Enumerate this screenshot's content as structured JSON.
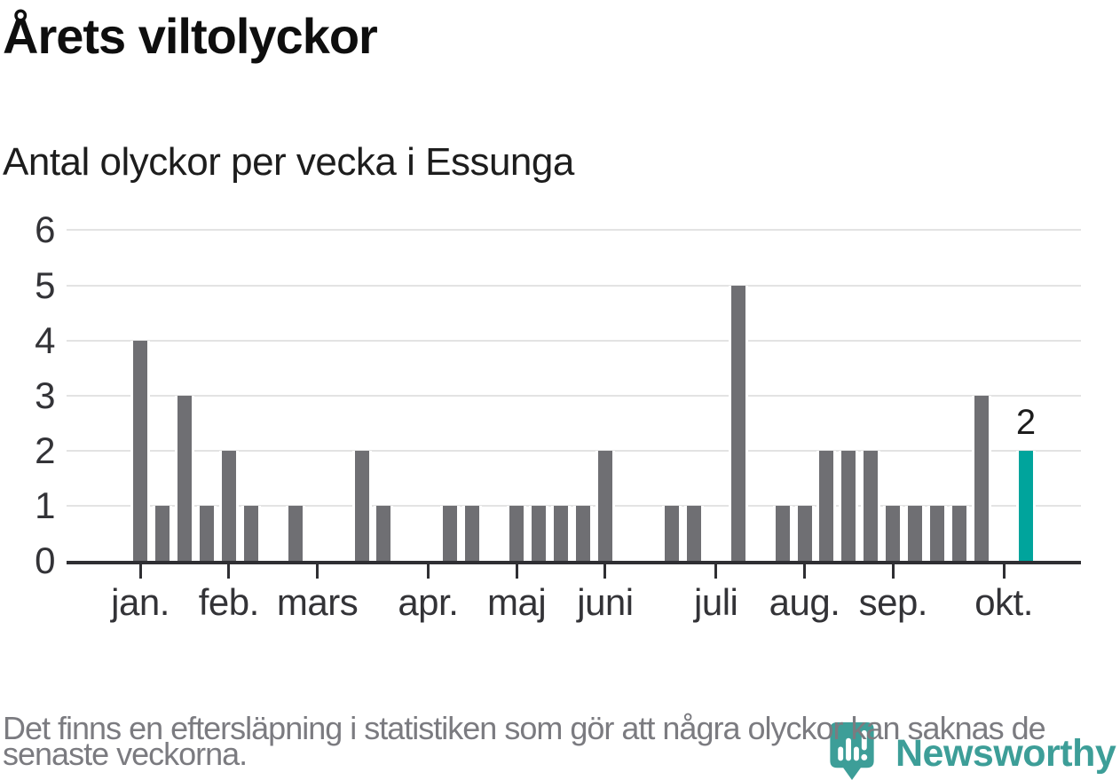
{
  "header": {
    "title": "Årets viltolyckor",
    "subtitle": "Antal olyckor per vecka i Essunga"
  },
  "footer": {
    "note": "Det finns en eftersläpning i statistiken som gör att några olyckor kan saknas de senaste veckorna."
  },
  "branding": {
    "name": "Newsworthy",
    "logo_icon": "newsworthy-pin-barchart-icon"
  },
  "colors": {
    "bar": "#6f6f73",
    "bar_highlight": "#00a49c",
    "axis": "#2f2f33",
    "grid": "#e3e3e3",
    "tick_text": "#333337",
    "title_text": "#0e0e0e",
    "footer_text": "#7b7b80",
    "brand": "#3d9e98"
  },
  "chart_data": {
    "type": "bar",
    "title": "Årets viltolyckor",
    "subtitle": "Antal olyckor per vecka i Essunga",
    "xlabel": "",
    "ylabel": "",
    "x_unit": "vecka (week of year)",
    "ylim": [
      0,
      6
    ],
    "grid": true,
    "y_ticks": [
      "0",
      "1",
      "2",
      "3",
      "4",
      "5",
      "6"
    ],
    "values": [
      4,
      1,
      3,
      1,
      2,
      1,
      0,
      1,
      0,
      0,
      2,
      1,
      0,
      0,
      1,
      1,
      0,
      1,
      1,
      1,
      1,
      2,
      0,
      0,
      1,
      1,
      0,
      5,
      0,
      1,
      1,
      2,
      2,
      2,
      1,
      1,
      1,
      1,
      3,
      0,
      2
    ],
    "highlight_last": true,
    "last_value_label": "2",
    "month_ticks": [
      {
        "label": "jan.",
        "week_index": 0
      },
      {
        "label": "feb.",
        "week_index": 4
      },
      {
        "label": "mars",
        "week_index": 8
      },
      {
        "label": "apr.",
        "week_index": 13
      },
      {
        "label": "maj",
        "week_index": 17
      },
      {
        "label": "juni",
        "week_index": 21
      },
      {
        "label": "juli",
        "week_index": 26
      },
      {
        "label": "aug.",
        "week_index": 30
      },
      {
        "label": "sep.",
        "week_index": 34
      },
      {
        "label": "okt.",
        "week_index": 39
      }
    ]
  }
}
